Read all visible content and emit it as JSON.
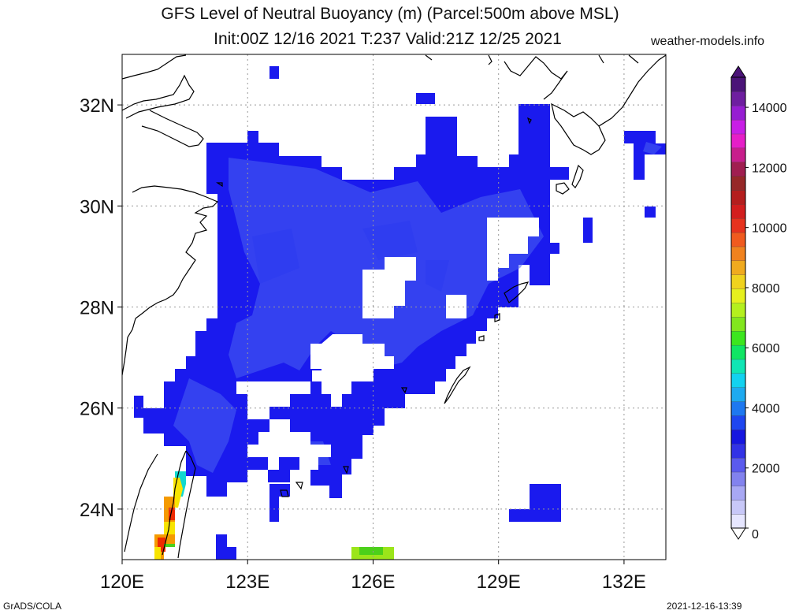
{
  "title_line1": "GFS Level of Neutral Buoyancy (m) (Parcel:500m above MSL)",
  "title_line2": "Init:00Z 12/16 2021 T:237 Valid:21Z 12/25 2021",
  "site": "weather-models.info",
  "footer_left": "GrADS/COLA",
  "footer_right": "2021-12-16-13:39",
  "map": {
    "lon_range": [
      120,
      133
    ],
    "lat_range": [
      23,
      33
    ],
    "x_ticks": [
      "120E",
      "123E",
      "126E",
      "129E",
      "132E"
    ],
    "x_tick_values": [
      120,
      123,
      126,
      129,
      132
    ],
    "y_ticks": [
      "24N",
      "26N",
      "28N",
      "30N",
      "32N"
    ],
    "y_tick_values": [
      24,
      26,
      28,
      30,
      32
    ],
    "grid": true,
    "coastline_color": "#000000",
    "fill_colors": {
      "dark_blue": "#1a1aee",
      "medium_blue": "#2e3cf0",
      "light_blue": "#4a62f2",
      "green": "#4cd01a",
      "lime": "#9be51a",
      "yellow": "#f8e400",
      "orange": "#f59a00",
      "red": "#ee2a00",
      "cyan": "#10d8d0"
    }
  },
  "colorbar": {
    "ticks": [
      "0",
      "2000",
      "4000",
      "6000",
      "8000",
      "10000",
      "12000",
      "14000"
    ],
    "tick_values": [
      0,
      2000,
      4000,
      6000,
      8000,
      10000,
      12000,
      14000
    ],
    "range": [
      0,
      15000
    ],
    "colors": [
      "#e6e6ff",
      "#c8c8f8",
      "#a8a8f4",
      "#8282ee",
      "#5a5aee",
      "#3232e6",
      "#1616e0",
      "#1e46f0",
      "#1e78f0",
      "#1eaaf0",
      "#12d2f0",
      "#10e6b4",
      "#10e664",
      "#3ce61e",
      "#82e61e",
      "#b4f01e",
      "#e6f01e",
      "#f0d21e",
      "#f0aa1e",
      "#f0821e",
      "#f05a1e",
      "#e6321e",
      "#d21e1e",
      "#b41e1e",
      "#962828",
      "#a01e50",
      "#c81e8c",
      "#e61ec8",
      "#c81ee6",
      "#961ed2",
      "#6e1ea0",
      "#4b1478"
    ]
  }
}
